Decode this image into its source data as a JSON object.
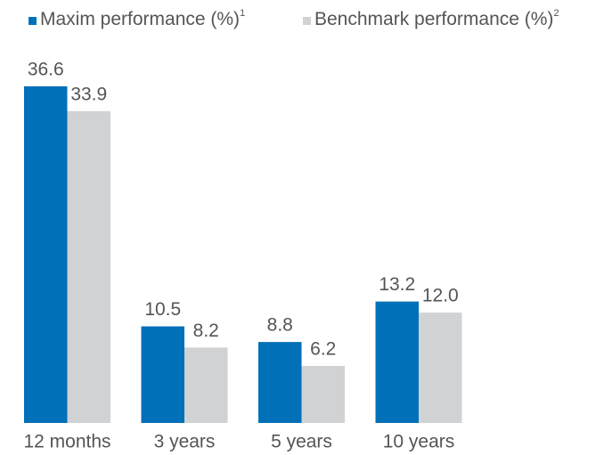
{
  "chart_data": {
    "type": "bar",
    "categories": [
      "12 months",
      "3 years",
      "5 years",
      "10 years"
    ],
    "series": [
      {
        "name": "Maxim performance (%)",
        "footnote": "1",
        "color": "#0070b8",
        "values": [
          36.6,
          10.5,
          8.8,
          13.2
        ],
        "value_labels": [
          "36.6",
          "10.5",
          "8.8",
          "13.2"
        ]
      },
      {
        "name": "Benchmark performance (%)",
        "footnote": "2",
        "color": "#d1d2d4",
        "values": [
          33.9,
          8.2,
          6.2,
          12.0
        ],
        "value_labels": [
          "33.9",
          "8.2",
          "6.2",
          "12.0"
        ]
      }
    ]
  }
}
